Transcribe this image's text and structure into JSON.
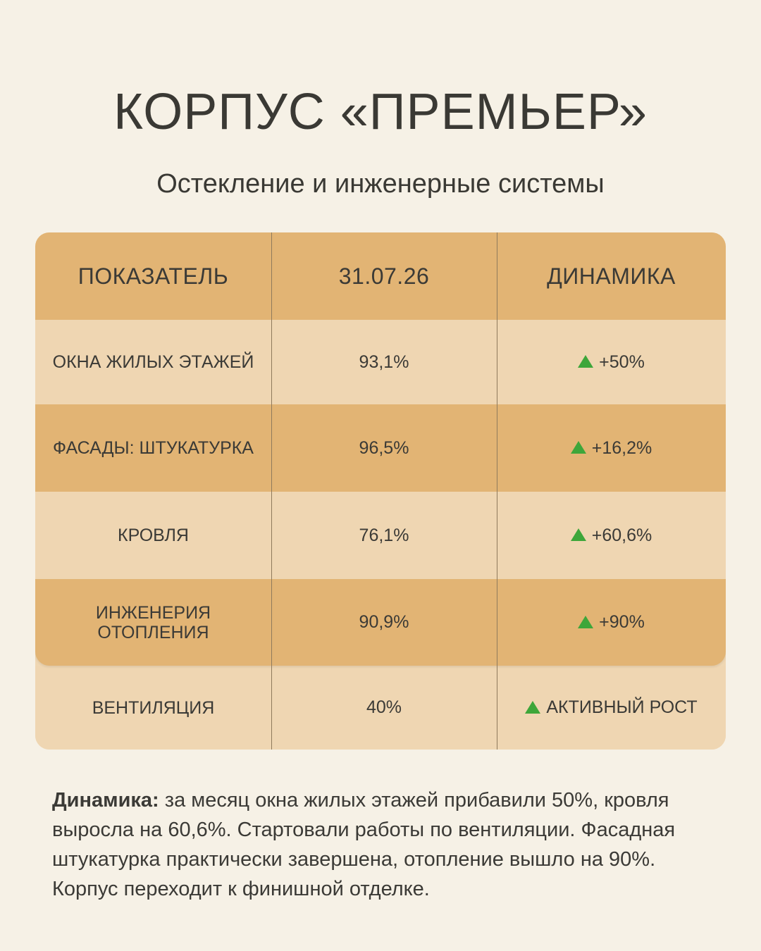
{
  "title": "КОРПУС «ПРЕМЬЕР»",
  "subtitle": "Остекление и инженерные системы",
  "table": {
    "headers": [
      "ПОКАЗАТЕЛЬ",
      "31.07.26",
      "ДИНАМИКА"
    ],
    "rows": [
      {
        "indicator": "ОКНА ЖИЛЫХ ЭТАЖЕЙ",
        "value": "93,1%",
        "dynamics": "+50%"
      },
      {
        "indicator": "ФАСАДЫ: ШТУКАТУРКА",
        "value": "96,5%",
        "dynamics": "+16,2%"
      },
      {
        "indicator": "КРОВЛЯ",
        "value": "76,1%",
        "dynamics": "+60,6%"
      },
      {
        "indicator": "ИНЖЕНЕРИЯ ОТОПЛЕНИЯ",
        "value": "90,9%",
        "dynamics": "+90%"
      },
      {
        "indicator": "ВЕНТИЛЯЦИЯ",
        "value": "40%",
        "dynamics": "АКТИВНЫЙ РОСТ"
      }
    ],
    "colors": {
      "dark_row": "#e2b474",
      "light_row": "#efd6b2",
      "up_arrow": "#3ea63a"
    }
  },
  "note": {
    "label": "Динамика:",
    "text": " за месяц окна жилых этажей прибавили 50%, кровля выросла на 60,6%. Стартовали работы по вентиляции. Фасадная штукатурка практически завершена, отопление вышло на 90%. Корпус переходит к финишной отделке."
  }
}
